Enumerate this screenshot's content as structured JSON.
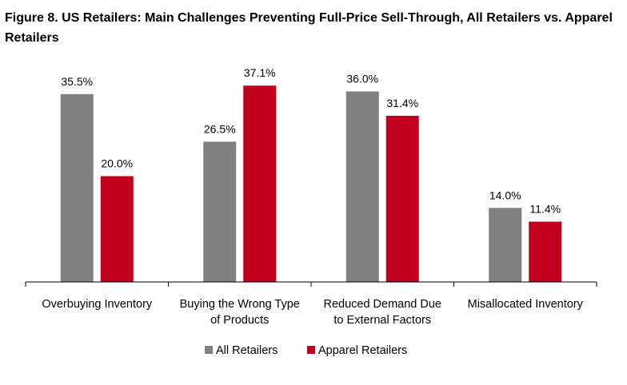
{
  "chart_data": {
    "type": "bar",
    "title": "Figure 8. US Retailers: Main Challenges Preventing Full-Price Sell-Through, All Retailers vs. Apparel Retailers",
    "categories": [
      [
        "Overbuying Inventory"
      ],
      [
        "Buying the Wrong Type",
        "of Products"
      ],
      [
        "Reduced Demand Due",
        "to External Factors"
      ],
      [
        "Misallocated Inventory"
      ]
    ],
    "series": [
      {
        "name": "All Retailers",
        "color": "#808080",
        "values": [
          35.5,
          26.5,
          36.0,
          14.0
        ],
        "labels": [
          "35.5%",
          "26.5%",
          "36.0%",
          "14.0%"
        ]
      },
      {
        "name": "Apparel Retailers",
        "color": "#C0001D",
        "values": [
          20.0,
          37.1,
          31.4,
          11.4
        ],
        "labels": [
          "20.0%",
          "37.1%",
          "31.4%",
          "11.4%"
        ]
      }
    ],
    "ylim": [
      0,
      40
    ],
    "grid": false,
    "legend_position": "bottom"
  }
}
